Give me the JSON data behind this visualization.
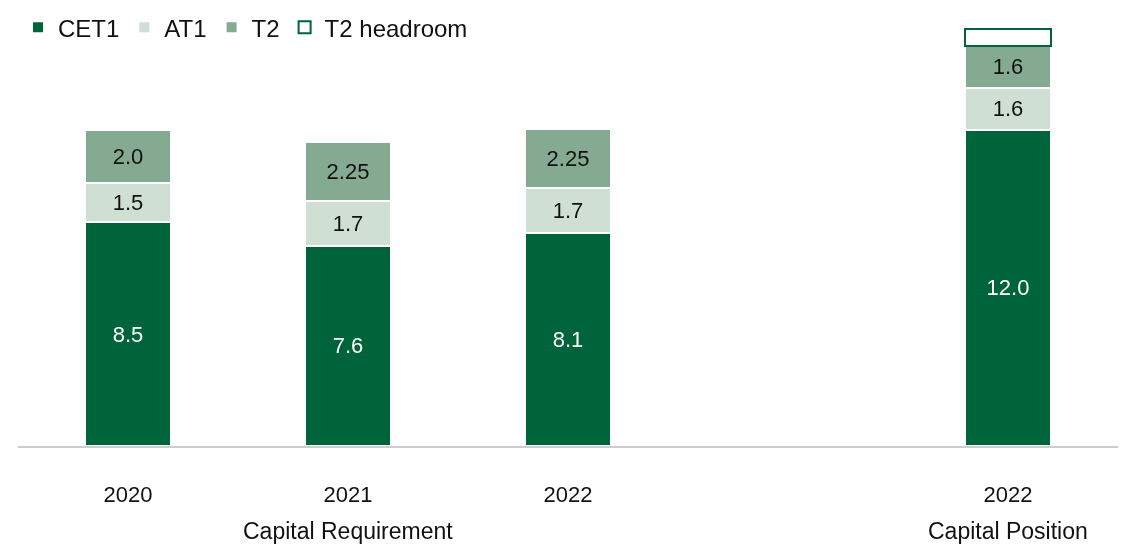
{
  "chart_data": {
    "type": "bar",
    "stacked": true,
    "categories": [
      "2020",
      "2021",
      "2022",
      null,
      "2022"
    ],
    "series": [
      {
        "name": "CET1",
        "color": "#00643a",
        "values": [
          8.5,
          7.6,
          8.1,
          null,
          12.0
        ],
        "value_labels": [
          "8.5",
          "7.6",
          "8.1",
          null,
          "12.0"
        ]
      },
      {
        "name": "AT1",
        "color": "#cfdfd3",
        "values": [
          1.5,
          1.7,
          1.7,
          null,
          1.6
        ],
        "value_labels": [
          "1.5",
          "1.7",
          "1.7",
          null,
          "1.6"
        ]
      },
      {
        "name": "T2",
        "color": "#85aa92",
        "values": [
          2.0,
          2.25,
          2.25,
          null,
          1.6
        ],
        "value_labels": [
          "2.0",
          "2.25",
          "2.25",
          null,
          "1.6"
        ]
      },
      {
        "name": "T2 headroom",
        "color": "#ffffff",
        "values": [
          null,
          null,
          null,
          null,
          0.65
        ]
      }
    ],
    "ylim": [
      0,
      16.1
    ],
    "tick_labels": "x",
    "legend": "top left",
    "annotations": [
      "Capital Requirement",
      "Capital Position"
    ]
  }
}
